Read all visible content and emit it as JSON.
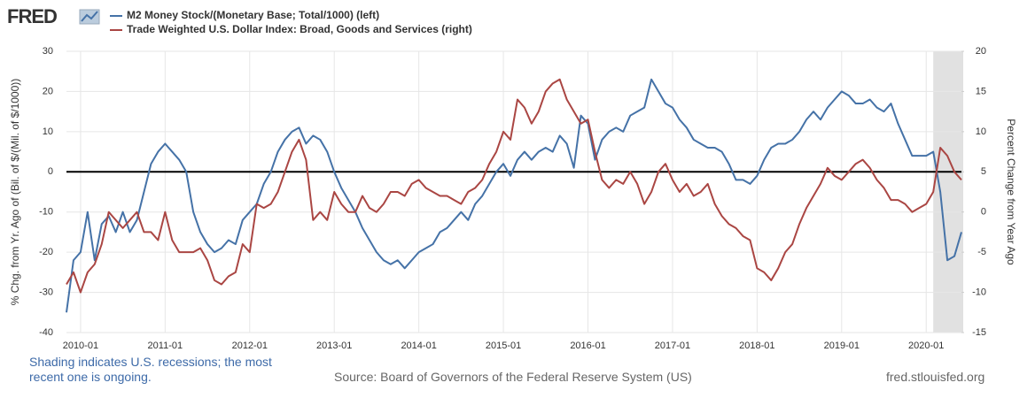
{
  "chart_data": {
    "type": "line",
    "logo": "FRED",
    "y_label": "% Chg. from Yr. Ago of (Bil. of $/(Mil. of $/1000))",
    "y2_label": "Percent Change from Year Ago",
    "note": "Shading indicates U.S. recessions; the most recent one is ongoing.",
    "source": "Source: Board of Governors of the Federal Reserve System (US)",
    "url": "fred.stlouisfed.org",
    "grid": true,
    "reference_line": 0,
    "recession": {
      "start": "2020-02",
      "end": "2020-06"
    },
    "x": [
      "2009-11",
      "2009-12",
      "2010-01",
      "2010-02",
      "2010-03",
      "2010-04",
      "2010-05",
      "2010-06",
      "2010-07",
      "2010-08",
      "2010-09",
      "2010-10",
      "2010-11",
      "2010-12",
      "2011-01",
      "2011-02",
      "2011-03",
      "2011-04",
      "2011-05",
      "2011-06",
      "2011-07",
      "2011-08",
      "2011-09",
      "2011-10",
      "2011-11",
      "2011-12",
      "2012-01",
      "2012-02",
      "2012-03",
      "2012-04",
      "2012-05",
      "2012-06",
      "2012-07",
      "2012-08",
      "2012-09",
      "2012-10",
      "2012-11",
      "2012-12",
      "2013-01",
      "2013-02",
      "2013-03",
      "2013-04",
      "2013-05",
      "2013-06",
      "2013-07",
      "2013-08",
      "2013-09",
      "2013-10",
      "2013-11",
      "2013-12",
      "2014-01",
      "2014-02",
      "2014-03",
      "2014-04",
      "2014-05",
      "2014-06",
      "2014-07",
      "2014-08",
      "2014-09",
      "2014-10",
      "2014-11",
      "2014-12",
      "2015-01",
      "2015-02",
      "2015-03",
      "2015-04",
      "2015-05",
      "2015-06",
      "2015-07",
      "2015-08",
      "2015-09",
      "2015-10",
      "2015-11",
      "2015-12",
      "2016-01",
      "2016-02",
      "2016-03",
      "2016-04",
      "2016-05",
      "2016-06",
      "2016-07",
      "2016-08",
      "2016-09",
      "2016-10",
      "2016-11",
      "2016-12",
      "2017-01",
      "2017-02",
      "2017-03",
      "2017-04",
      "2017-05",
      "2017-06",
      "2017-07",
      "2017-08",
      "2017-09",
      "2017-10",
      "2017-11",
      "2017-12",
      "2018-01",
      "2018-02",
      "2018-03",
      "2018-04",
      "2018-05",
      "2018-06",
      "2018-07",
      "2018-08",
      "2018-09",
      "2018-10",
      "2018-11",
      "2018-12",
      "2019-01",
      "2019-02",
      "2019-03",
      "2019-04",
      "2019-05",
      "2019-06",
      "2019-07",
      "2019-08",
      "2019-09",
      "2019-10",
      "2019-11",
      "2019-12",
      "2020-01",
      "2020-02",
      "2020-03",
      "2020-04",
      "2020-05",
      "2020-06"
    ],
    "xlim": [
      "2009-11",
      "2020-06"
    ],
    "xticks": [
      "2010-01",
      "2011-01",
      "2012-01",
      "2013-01",
      "2014-01",
      "2015-01",
      "2016-01",
      "2017-01",
      "2018-01",
      "2019-01",
      "2020-01"
    ],
    "ylim": [
      -40,
      30
    ],
    "yticks": [
      -40,
      -30,
      -20,
      -10,
      0,
      10,
      20,
      30
    ],
    "y2lim": [
      -15,
      20
    ],
    "y2ticks": [
      -15,
      -10,
      -5,
      0,
      5,
      10,
      15,
      20
    ],
    "series": [
      {
        "name": "M2 Money Stock/(Monetary Base; Total/1000) (left)",
        "color": "#4572a7",
        "values": [
          -35,
          -22,
          -20,
          -10,
          -22,
          -13,
          -11,
          -15,
          -10,
          -15,
          -12,
          -5,
          2,
          5,
          7,
          5,
          3,
          0,
          -10,
          -15,
          -18,
          -20,
          -19,
          -17,
          -18,
          -12,
          -10,
          -8,
          -3,
          0,
          5,
          8,
          10,
          11,
          7,
          9,
          8,
          5,
          0,
          -4,
          -7,
          -10,
          -14,
          -17,
          -20,
          -22,
          -23,
          -22,
          -24,
          -22,
          -20,
          -19,
          -18,
          -15,
          -14,
          -12,
          -10,
          -12,
          -8,
          -6,
          -3,
          0,
          2,
          -1,
          3,
          5,
          3,
          5,
          6,
          5,
          9,
          7,
          1,
          14,
          12,
          3,
          8,
          10,
          11,
          10,
          14,
          15,
          16,
          23,
          20,
          17,
          16,
          13,
          11,
          8,
          7,
          6,
          6,
          5,
          2,
          -2,
          -2,
          -3,
          -1,
          3,
          6,
          7,
          7,
          8,
          10,
          13,
          15,
          13,
          16,
          18,
          20,
          19,
          17,
          17,
          18,
          16,
          15,
          17,
          12,
          8,
          4,
          4,
          4,
          5,
          -5,
          -22,
          -21,
          -15
        ]
      },
      {
        "name": "Trade Weighted U.S. Dollar Index: Broad, Goods and Services (right)",
        "color": "#aa4643",
        "axis": "y2",
        "values": [
          -9,
          -7.5,
          -10,
          -7.5,
          -6.5,
          -4,
          0,
          -1,
          -2,
          -1,
          0,
          -2.5,
          -2.5,
          -3.5,
          0,
          -3.5,
          -5,
          -5,
          -5,
          -4.5,
          -6,
          -8.5,
          -9,
          -8,
          -7.5,
          -4,
          -5,
          1,
          0.5,
          1,
          2.5,
          5,
          7.5,
          9,
          6.5,
          -1,
          0,
          -1,
          2.5,
          1,
          0,
          0,
          2,
          0.5,
          0,
          1,
          2.5,
          2.5,
          2,
          3.5,
          4,
          3,
          2.5,
          2,
          2,
          1.5,
          1,
          2.5,
          3,
          4,
          6,
          7.5,
          10,
          9,
          14,
          13,
          11,
          12.5,
          15,
          16,
          16.5,
          14,
          12.5,
          11,
          11.5,
          7.5,
          4,
          3,
          4,
          3.5,
          5,
          3.5,
          1,
          2.5,
          5,
          6,
          4,
          2.5,
          3.5,
          2,
          2.5,
          3.5,
          1,
          -0.5,
          -1.5,
          -2,
          -3,
          -3.5,
          -7,
          -7.5,
          -8.5,
          -7,
          -5,
          -4,
          -1.5,
          0.5,
          2,
          3.5,
          5.5,
          4.5,
          4,
          5,
          6,
          6.5,
          5.5,
          4,
          3,
          1.5,
          1.5,
          1,
          0,
          0.5,
          1,
          2.5,
          8,
          7,
          5,
          4
        ]
      }
    ]
  }
}
